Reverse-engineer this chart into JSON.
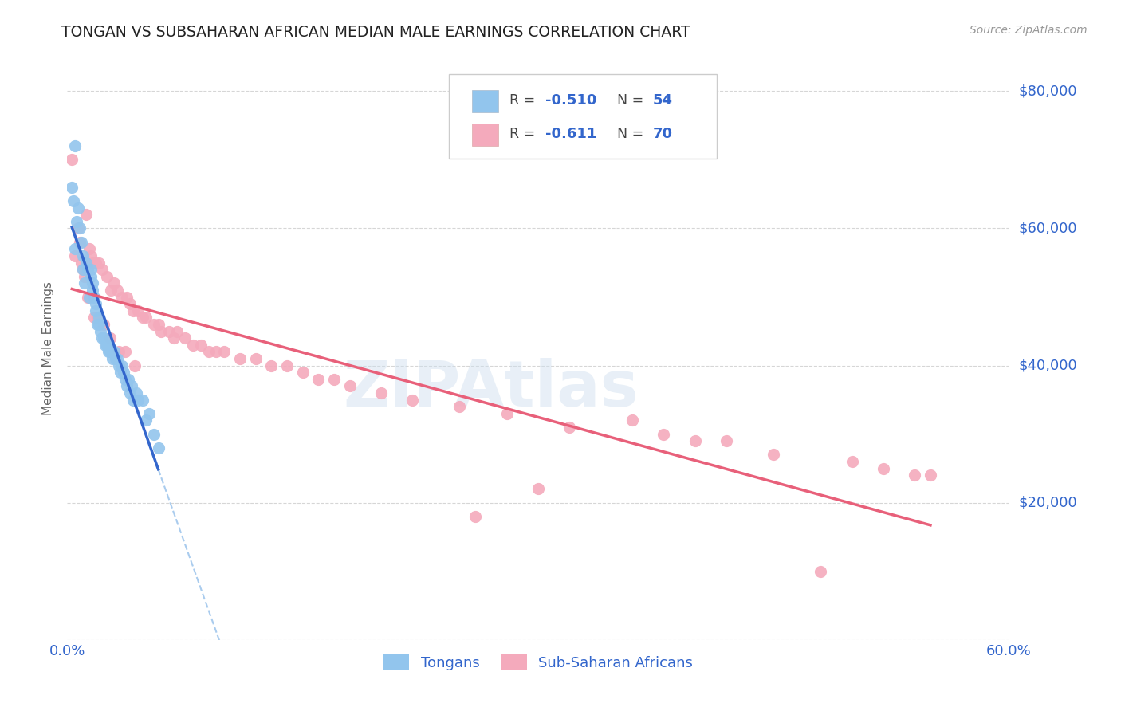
{
  "title": "TONGAN VS SUBSAHARAN AFRICAN MEDIAN MALE EARNINGS CORRELATION CHART",
  "source": "Source: ZipAtlas.com",
  "ylabel": "Median Male Earnings",
  "watermark": "ZIPAtlas",
  "xlim": [
    0.0,
    0.6
  ],
  "ylim": [
    0,
    85000
  ],
  "yticks": [
    0,
    20000,
    40000,
    60000,
    80000
  ],
  "ytick_labels": [
    "",
    "$20,000",
    "$40,000",
    "$60,000",
    "$80,000"
  ],
  "blue_R": -0.51,
  "blue_N": 54,
  "pink_R": -0.611,
  "pink_N": 70,
  "blue_color": "#92C5ED",
  "pink_color": "#F4AABC",
  "blue_line_color": "#3366CC",
  "pink_line_color": "#E8607A",
  "dashed_line_color": "#AACCEE",
  "title_color": "#222222",
  "axis_label_color": "#666666",
  "tick_color": "#3366CC",
  "blue_scatter_x": [
    0.003,
    0.004,
    0.005,
    0.005,
    0.006,
    0.007,
    0.008,
    0.009,
    0.01,
    0.01,
    0.011,
    0.012,
    0.013,
    0.014,
    0.015,
    0.015,
    0.016,
    0.016,
    0.017,
    0.018,
    0.018,
    0.019,
    0.02,
    0.02,
    0.021,
    0.022,
    0.023,
    0.024,
    0.025,
    0.025,
    0.026,
    0.027,
    0.028,
    0.029,
    0.03,
    0.031,
    0.032,
    0.033,
    0.034,
    0.035,
    0.036,
    0.037,
    0.038,
    0.039,
    0.04,
    0.041,
    0.042,
    0.044,
    0.045,
    0.048,
    0.05,
    0.052,
    0.055,
    0.058
  ],
  "blue_scatter_y": [
    66000,
    64000,
    72000,
    57000,
    61000,
    63000,
    60000,
    58000,
    56000,
    54000,
    52000,
    55000,
    54000,
    50000,
    54000,
    53000,
    52000,
    51000,
    50000,
    49000,
    48000,
    46000,
    47000,
    46000,
    45000,
    44000,
    44000,
    43000,
    43000,
    43000,
    42000,
    42000,
    42000,
    41000,
    42000,
    41000,
    41000,
    40000,
    39000,
    40000,
    39000,
    38000,
    37000,
    38000,
    36000,
    37000,
    35000,
    36000,
    35000,
    35000,
    32000,
    33000,
    30000,
    28000
  ],
  "pink_scatter_x": [
    0.003,
    0.005,
    0.007,
    0.008,
    0.009,
    0.01,
    0.011,
    0.012,
    0.013,
    0.014,
    0.015,
    0.016,
    0.017,
    0.018,
    0.019,
    0.02,
    0.022,
    0.023,
    0.025,
    0.027,
    0.028,
    0.03,
    0.032,
    0.033,
    0.035,
    0.037,
    0.038,
    0.04,
    0.042,
    0.043,
    0.045,
    0.048,
    0.05,
    0.055,
    0.058,
    0.06,
    0.065,
    0.068,
    0.07,
    0.075,
    0.08,
    0.085,
    0.09,
    0.095,
    0.1,
    0.11,
    0.12,
    0.13,
    0.14,
    0.15,
    0.16,
    0.17,
    0.18,
    0.2,
    0.22,
    0.25,
    0.28,
    0.32,
    0.38,
    0.4,
    0.42,
    0.45,
    0.48,
    0.5,
    0.52,
    0.54,
    0.55,
    0.36,
    0.3,
    0.26
  ],
  "pink_scatter_y": [
    70000,
    56000,
    60000,
    58000,
    55000,
    54000,
    53000,
    62000,
    50000,
    57000,
    56000,
    55000,
    47000,
    55000,
    47000,
    55000,
    54000,
    46000,
    53000,
    44000,
    51000,
    52000,
    51000,
    42000,
    50000,
    42000,
    50000,
    49000,
    48000,
    40000,
    48000,
    47000,
    47000,
    46000,
    46000,
    45000,
    45000,
    44000,
    45000,
    44000,
    43000,
    43000,
    42000,
    42000,
    42000,
    41000,
    41000,
    40000,
    40000,
    39000,
    38000,
    38000,
    37000,
    36000,
    35000,
    34000,
    33000,
    31000,
    30000,
    29000,
    29000,
    27000,
    10000,
    26000,
    25000,
    24000,
    24000,
    32000,
    22000,
    18000
  ]
}
